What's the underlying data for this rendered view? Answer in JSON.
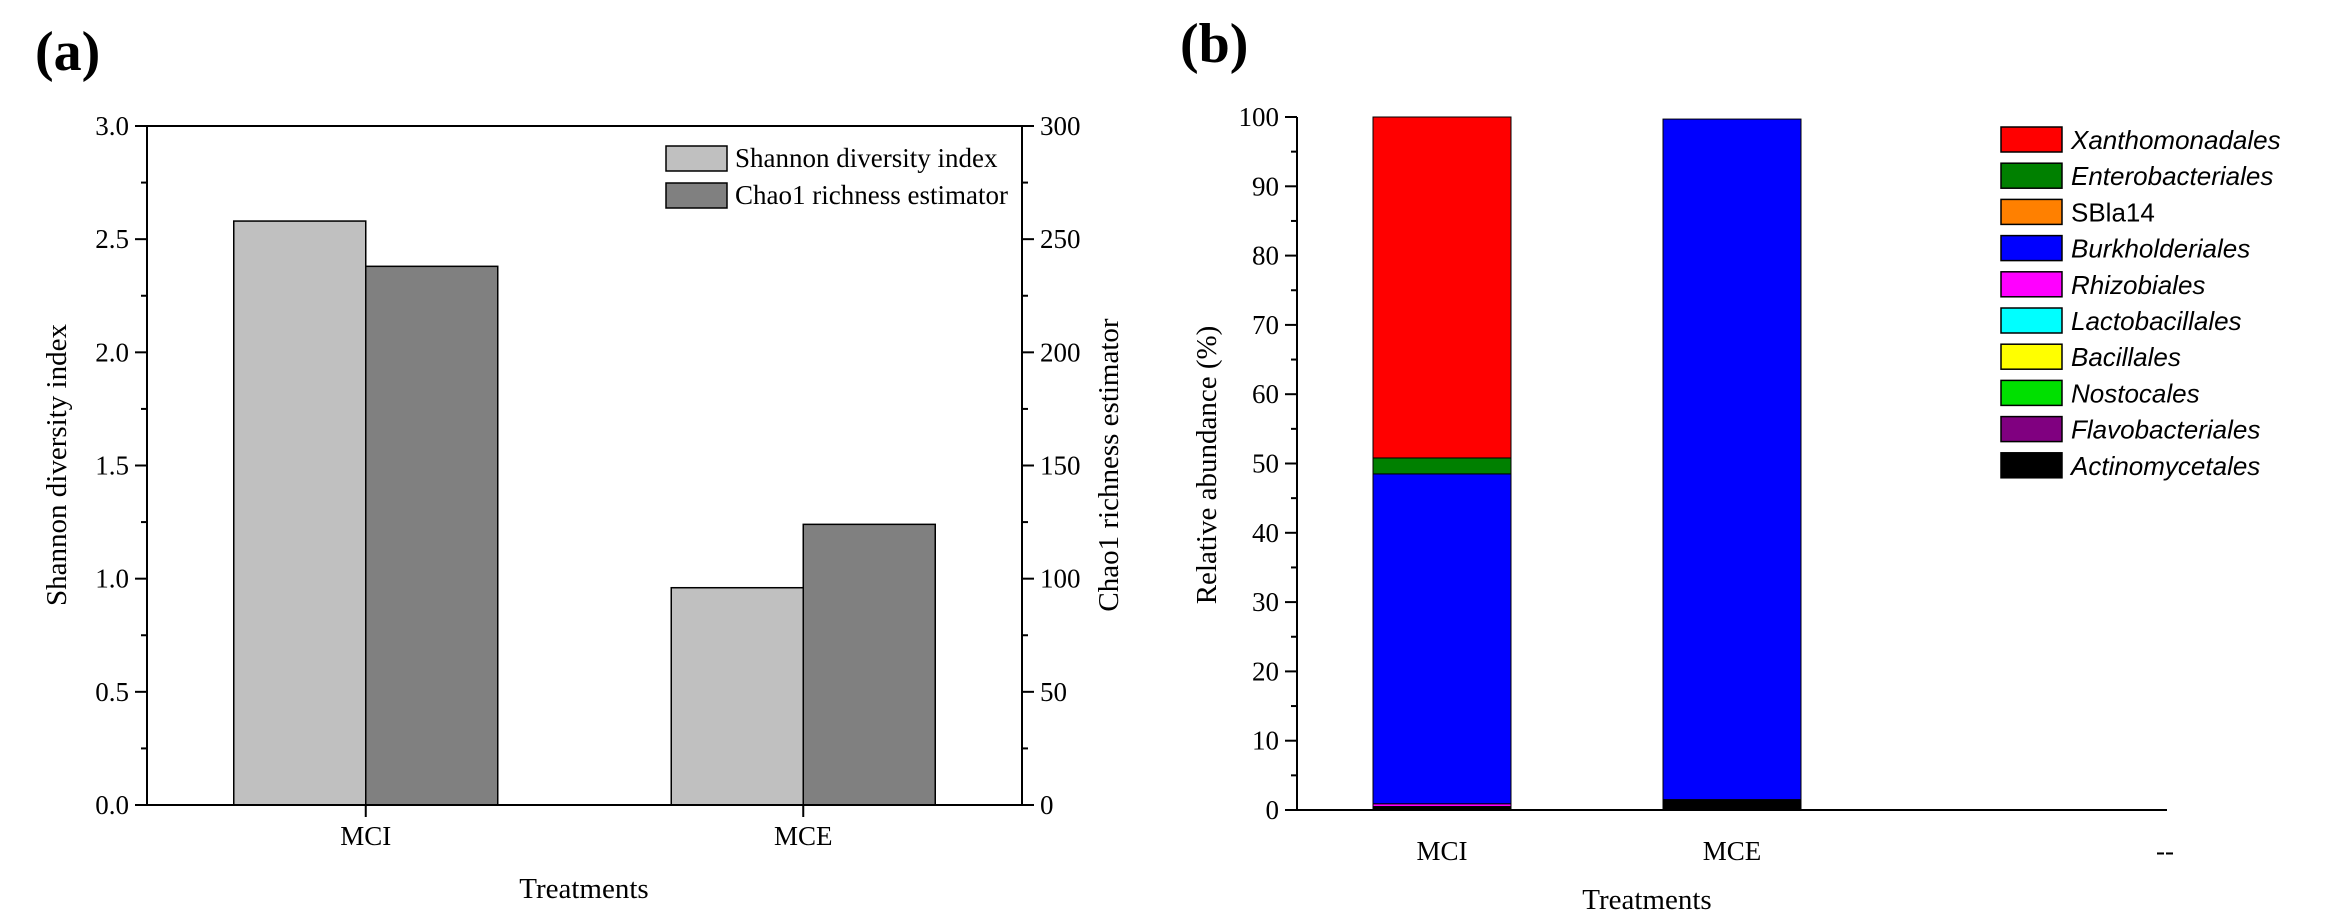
{
  "chart_data": [
    {
      "panel_label": "(a)",
      "type": "bar",
      "categories": [
        "MCI",
        "MCE"
      ],
      "series": [
        {
          "name": "Shannon diversity index",
          "axis": "left",
          "values": [
            2.58,
            0.96
          ],
          "color": "#c0c0c0"
        },
        {
          "name": "Chao1 richness estimator",
          "axis": "right",
          "values": [
            238,
            124
          ],
          "color": "#808080"
        }
      ],
      "xlabel": "Treatments",
      "ylabel": "Shannon diversity index",
      "ylabel_right": "Chao1 richness estimator",
      "ylim": [
        0,
        3.0
      ],
      "ylim_right": [
        0,
        300
      ],
      "yticks": [
        "0.0",
        "0.5",
        "1.0",
        "1.5",
        "2.0",
        "2.5",
        "3.0"
      ],
      "yticks_right": [
        "0",
        "50",
        "100",
        "150",
        "200",
        "250",
        "300"
      ],
      "legend_position": "top-right"
    },
    {
      "panel_label": "(b)",
      "type": "bar",
      "stacked": true,
      "categories": [
        "MCI",
        "MCE",
        "--"
      ],
      "series": [
        {
          "name": "Actinomycetales",
          "color": "#000000",
          "values": [
            0.5,
            1.5,
            0
          ]
        },
        {
          "name": "Flavobacteriales",
          "color": "#800080",
          "values": [
            0,
            0,
            0
          ]
        },
        {
          "name": "Nostocales",
          "color": "#00e000",
          "values": [
            0,
            0,
            0
          ]
        },
        {
          "name": "Bacillales",
          "color": "#ffff00",
          "values": [
            0,
            0,
            0
          ]
        },
        {
          "name": "Lactobacillales",
          "color": "#00ffff",
          "values": [
            0,
            0,
            0
          ]
        },
        {
          "name": "Rhizobiales",
          "color": "#ff00ff",
          "values": [
            0.4,
            0,
            0
          ]
        },
        {
          "name": "Burkholderiales",
          "color": "#0000ff",
          "values": [
            47.6,
            98.2,
            0
          ]
        },
        {
          "name": "SBla14",
          "color": "#ff8000",
          "values": [
            0,
            0,
            0
          ]
        },
        {
          "name": "Enterobacteriales",
          "color": "#008000",
          "values": [
            2.3,
            0,
            0
          ]
        },
        {
          "name": "Xanthomonadales",
          "color": "#ff0000",
          "values": [
            49.2,
            0,
            0
          ]
        }
      ],
      "legend_order": [
        "Xanthomonadales",
        "Enterobacteriales",
        "SBla14",
        "Burkholderiales",
        "Rhizobiales",
        "Lactobacillales",
        "Bacillales",
        "Nostocales",
        "Flavobacteriales",
        "Actinomycetales"
      ],
      "italic_legend": {
        "Xanthomonadales": true,
        "Enterobacteriales": true,
        "SBla14": false,
        "Burkholderiales": true,
        "Rhizobiales": true,
        "Lactobacillales": true,
        "Bacillales": true,
        "Nostocales": true,
        "Flavobacteriales": true,
        "Actinomycetales": true
      },
      "xlabel": "Treatments",
      "ylabel": "Relative abundance (%)",
      "ylim": [
        0,
        100
      ],
      "yticks": [
        "0",
        "10",
        "20",
        "30",
        "40",
        "50",
        "60",
        "70",
        "80",
        "90",
        "100"
      ],
      "legend_position": "right"
    }
  ]
}
